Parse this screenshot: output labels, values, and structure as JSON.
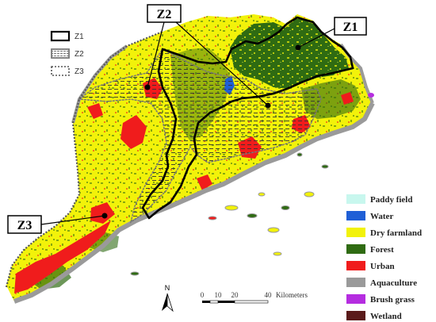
{
  "zone_legend": [
    {
      "label": "Z1",
      "style": "solid-thick"
    },
    {
      "label": "Z2",
      "style": "hatched-box"
    },
    {
      "label": "Z3",
      "style": "dotted"
    }
  ],
  "callouts": [
    {
      "label": "Z1"
    },
    {
      "label": "Z2"
    },
    {
      "label": "Z3"
    }
  ],
  "landuse_legend": [
    {
      "label": "Paddy field",
      "color": "#c8f7ee"
    },
    {
      "label": "Water",
      "color": "#1f5fd6"
    },
    {
      "label": "Dry farmland",
      "color": "#f2f20a"
    },
    {
      "label": "Forest",
      "color": "#2f6b12"
    },
    {
      "label": "Urban",
      "color": "#f01c1c"
    },
    {
      "label": "Aquaculture",
      "color": "#9a9a9a"
    },
    {
      "label": "Brush grass",
      "color": "#b52de0"
    },
    {
      "label": "Wetland",
      "color": "#5a1a1a"
    }
  ],
  "scale_bar": {
    "ticks": [
      "0",
      "10",
      "20",
      "40"
    ],
    "unit": "Kilometers"
  },
  "north_arrow": {
    "label": "N"
  }
}
